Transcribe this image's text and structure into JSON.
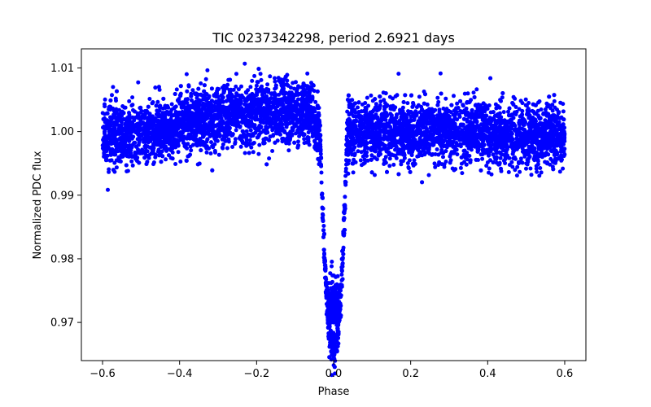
{
  "chart_data": {
    "type": "scatter",
    "title": "TIC 0237342298, period 2.6921 days",
    "xlabel": "Phase",
    "ylabel": "Normalized PDC flux",
    "xlim": [
      -0.655,
      0.655
    ],
    "ylim": [
      0.964,
      1.013
    ],
    "xticks": [
      -0.6,
      -0.4,
      -0.2,
      0.0,
      0.2,
      0.4,
      0.6
    ],
    "xtick_labels": [
      "−0.6",
      "−0.4",
      "−0.2",
      "0.0",
      "0.2",
      "0.4",
      "0.6"
    ],
    "yticks": [
      0.97,
      0.98,
      0.99,
      1.0,
      1.01
    ],
    "ytick_labels": [
      "0.97",
      "0.98",
      "0.99",
      "1.00",
      "1.01"
    ],
    "grid": false,
    "series": [
      {
        "marker_color": "#0000ff",
        "x_range": [
          -0.6,
          0.6
        ],
        "baseline_flux": 1.0,
        "transit_center": 0.0,
        "transit_min_flux": 0.966,
        "scatter_approx": 0.003
      }
    ]
  }
}
